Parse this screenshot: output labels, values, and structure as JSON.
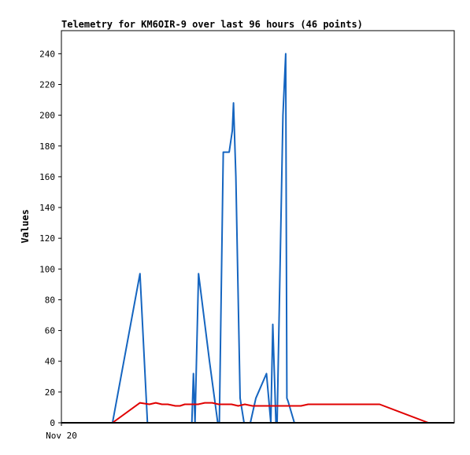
{
  "chart_data": {
    "type": "line",
    "title": "Telemetry for KM6OIR-9 over last 96 hours (46 points)",
    "xlabel": "",
    "ylabel": "Values",
    "ylim": [
      0,
      255
    ],
    "xlim": [
      0,
      100
    ],
    "yticks": [
      0,
      20,
      40,
      60,
      80,
      100,
      120,
      140,
      160,
      180,
      200,
      220,
      240
    ],
    "xtick_labels": [
      {
        "x": 0,
        "label": "Nov 20"
      }
    ],
    "grid": false,
    "series": [
      {
        "color": "#1565c0",
        "x": [
          13.0,
          20.0,
          21.9,
          33.2,
          33.6,
          34.0,
          34.9,
          37.7,
          39.8,
          40.2,
          41.2,
          42.7,
          43.5,
          43.8,
          44.4,
          45.5,
          46.5,
          48.1,
          49.5,
          52.2,
          53.3,
          53.8,
          54.6,
          54.9,
          56.4,
          57.1,
          57.4,
          57.7,
          59.3
        ],
        "y": [
          0,
          97,
          0,
          0,
          32,
          0,
          97,
          40,
          0,
          0,
          176,
          176,
          190,
          208,
          160,
          16,
          0,
          0,
          16,
          32,
          0,
          64,
          0,
          0,
          200,
          240,
          16,
          14,
          0
        ]
      },
      {
        "color": "#e00000",
        "x": [
          13.0,
          20.0,
          22.4,
          24.0,
          25.6,
          27.1,
          29.0,
          30.2,
          31.4,
          33.1,
          34.8,
          36.5,
          38.4,
          40.0,
          41.7,
          43.3,
          45.0,
          46.7,
          48.6,
          50.2,
          51.9,
          53.3,
          55.0,
          56.6,
          58.3,
          59.9,
          61.0,
          62.8,
          67.0,
          72.0,
          76.5,
          81.0,
          93.4
        ],
        "y": [
          0,
          13,
          12,
          13,
          12,
          12,
          11,
          11,
          12,
          12,
          12,
          13,
          13,
          12,
          12,
          12,
          11,
          12,
          11,
          11,
          11,
          11,
          11,
          11,
          11,
          11,
          11,
          12,
          12,
          12,
          12,
          12,
          0
        ]
      }
    ]
  }
}
